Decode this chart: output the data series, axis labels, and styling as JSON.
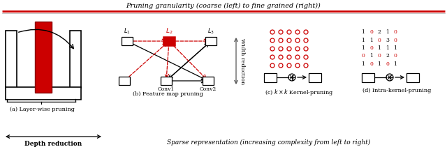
{
  "title_top": "Pruning granularity (coarse (left) to fine grained (right))",
  "title_bottom": "Sparse representation (increasing complexity from left to right)",
  "label_a": "(a) Layer-wise pruning",
  "label_b": "(b) Feature map pruning",
  "label_c": "(c) $k \\times k$ Kernel-pruning",
  "label_d": "(d) Intra-kernel-pruning",
  "depth_label": "Depth reduction",
  "width_label": "Width reduction",
  "red_color": "#cc0000",
  "matrix_d": [
    [
      1,
      0,
      2,
      1,
      0
    ],
    [
      1,
      1,
      0,
      3,
      0
    ],
    [
      1,
      0,
      1,
      1,
      1
    ],
    [
      0,
      1,
      0,
      2,
      0
    ],
    [
      1,
      0,
      1,
      0,
      1
    ]
  ]
}
